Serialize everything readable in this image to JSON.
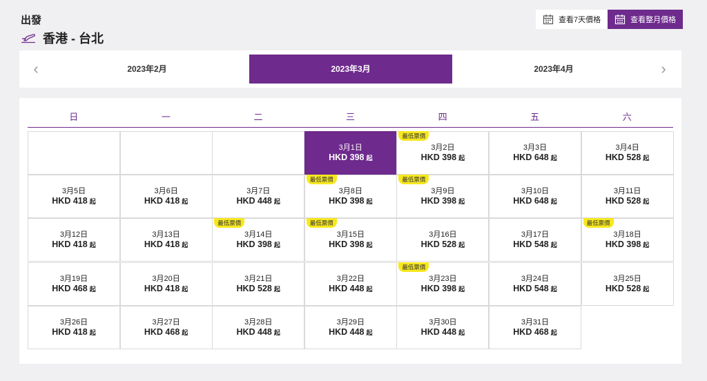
{
  "header": {
    "title": "出發",
    "route": "香港 - 台北"
  },
  "view_toggle": {
    "week_label": "查看7天價格",
    "month_label": "查看整月價格"
  },
  "months": [
    {
      "label": "2023年2月",
      "active": false
    },
    {
      "label": "2023年3月",
      "active": true
    },
    {
      "label": "2023年4月",
      "active": false
    }
  ],
  "weekdays": [
    "日",
    "一",
    "二",
    "三",
    "四",
    "五",
    "六"
  ],
  "badge_label": "最低票價",
  "price_suffix": "起",
  "colors": {
    "accent": "#6e2a8c",
    "badge": "#f7e81f"
  },
  "days": [
    {
      "date": "3月1日",
      "price": "HKD 398",
      "selected": true,
      "lowest": false
    },
    {
      "date": "3月2日",
      "price": "HKD 398",
      "selected": false,
      "lowest": true
    },
    {
      "date": "3月3日",
      "price": "HKD 648",
      "selected": false,
      "lowest": false
    },
    {
      "date": "3月4日",
      "price": "HKD 528",
      "selected": false,
      "lowest": false
    },
    {
      "date": "3月5日",
      "price": "HKD 418",
      "selected": false,
      "lowest": false
    },
    {
      "date": "3月6日",
      "price": "HKD 418",
      "selected": false,
      "lowest": false
    },
    {
      "date": "3月7日",
      "price": "HKD 448",
      "selected": false,
      "lowest": false
    },
    {
      "date": "3月8日",
      "price": "HKD 398",
      "selected": false,
      "lowest": true
    },
    {
      "date": "3月9日",
      "price": "HKD 398",
      "selected": false,
      "lowest": true
    },
    {
      "date": "3月10日",
      "price": "HKD 648",
      "selected": false,
      "lowest": false
    },
    {
      "date": "3月11日",
      "price": "HKD 528",
      "selected": false,
      "lowest": false
    },
    {
      "date": "3月12日",
      "price": "HKD 418",
      "selected": false,
      "lowest": false
    },
    {
      "date": "3月13日",
      "price": "HKD 418",
      "selected": false,
      "lowest": false
    },
    {
      "date": "3月14日",
      "price": "HKD 398",
      "selected": false,
      "lowest": true
    },
    {
      "date": "3月15日",
      "price": "HKD 398",
      "selected": false,
      "lowest": true
    },
    {
      "date": "3月16日",
      "price": "HKD 528",
      "selected": false,
      "lowest": false
    },
    {
      "date": "3月17日",
      "price": "HKD 548",
      "selected": false,
      "lowest": false
    },
    {
      "date": "3月18日",
      "price": "HKD 398",
      "selected": false,
      "lowest": true
    },
    {
      "date": "3月19日",
      "price": "HKD 468",
      "selected": false,
      "lowest": false
    },
    {
      "date": "3月20日",
      "price": "HKD 418",
      "selected": false,
      "lowest": false
    },
    {
      "date": "3月21日",
      "price": "HKD 528",
      "selected": false,
      "lowest": false
    },
    {
      "date": "3月22日",
      "price": "HKD 448",
      "selected": false,
      "lowest": false
    },
    {
      "date": "3月23日",
      "price": "HKD 398",
      "selected": false,
      "lowest": true
    },
    {
      "date": "3月24日",
      "price": "HKD 548",
      "selected": false,
      "lowest": false
    },
    {
      "date": "3月25日",
      "price": "HKD 528",
      "selected": false,
      "lowest": false
    },
    {
      "date": "3月26日",
      "price": "HKD 418",
      "selected": false,
      "lowest": false
    },
    {
      "date": "3月27日",
      "price": "HKD 468",
      "selected": false,
      "lowest": false
    },
    {
      "date": "3月28日",
      "price": "HKD 448",
      "selected": false,
      "lowest": false
    },
    {
      "date": "3月29日",
      "price": "HKD 448",
      "selected": false,
      "lowest": false
    },
    {
      "date": "3月30日",
      "price": "HKD 448",
      "selected": false,
      "lowest": false
    },
    {
      "date": "3月31日",
      "price": "HKD 468",
      "selected": false,
      "lowest": false
    }
  ],
  "first_weekday": 3
}
